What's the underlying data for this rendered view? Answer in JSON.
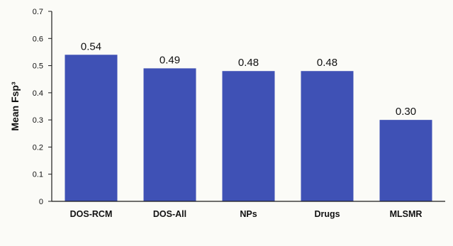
{
  "chart_data": {
    "type": "bar",
    "categories": [
      "DOS-RCM",
      "DOS-All",
      "NPs",
      "Drugs",
      "MLSMR"
    ],
    "values": [
      0.54,
      0.49,
      0.48,
      0.48,
      0.3
    ],
    "value_labels": [
      "0.54",
      "0.49",
      "0.48",
      "0.48",
      "0.30"
    ],
    "ylabel": "Mean Fsp³",
    "xlabel": "",
    "title": "",
    "ylim": [
      0,
      0.7
    ],
    "yticks": [
      0,
      0.1,
      0.2,
      0.3,
      0.4,
      0.5,
      0.6,
      0.7
    ],
    "ytick_labels": [
      "0",
      "0.1",
      "0.2",
      "0.3",
      "0.4",
      "0.5",
      "0.6",
      "0.7"
    ],
    "grid": false,
    "legend": "none",
    "colors": {
      "bar": "#3f51b5",
      "axis": "#1a1a1a",
      "background": "#fbfbf7"
    }
  }
}
